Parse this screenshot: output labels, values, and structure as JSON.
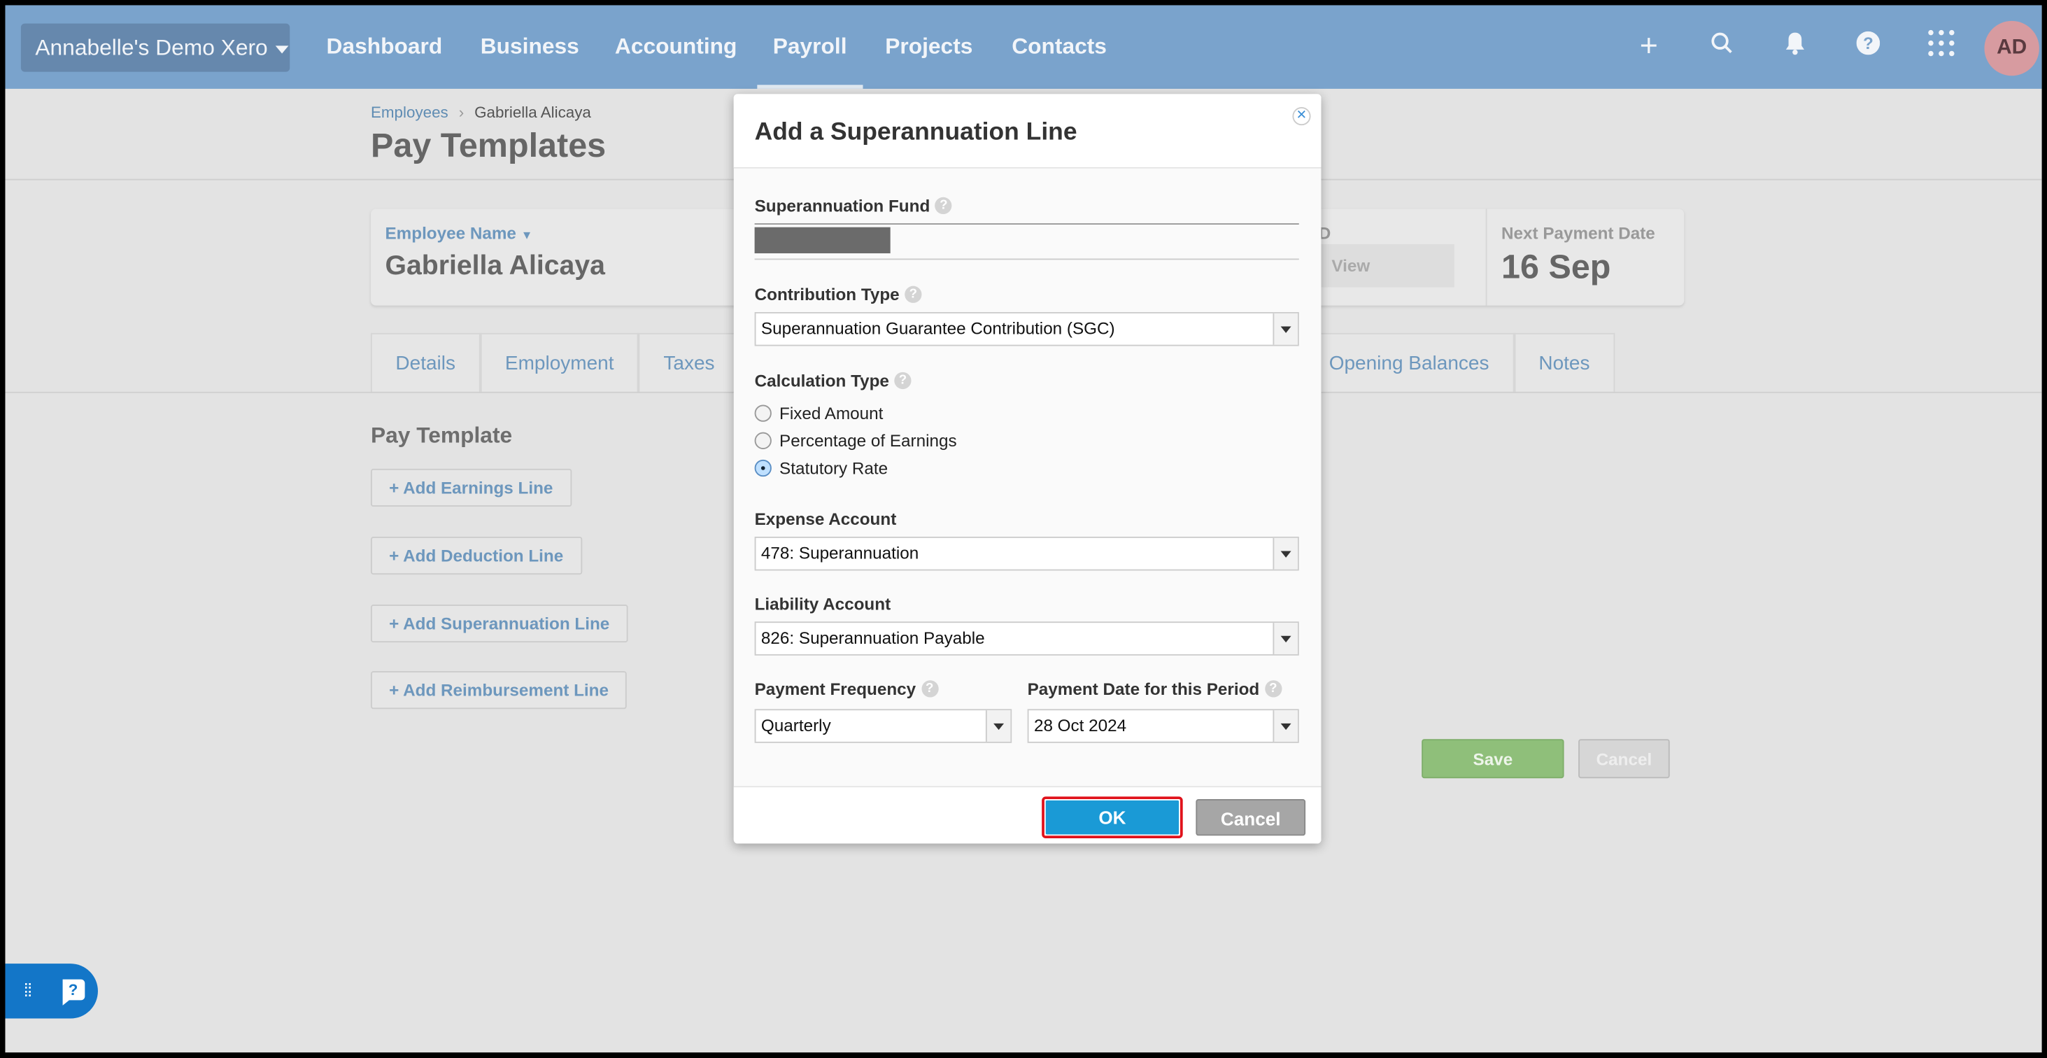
{
  "nav": {
    "org": "Annabelle's Demo Xero",
    "items": [
      "Dashboard",
      "Business",
      "Accounting",
      "Payroll",
      "Projects",
      "Contacts"
    ],
    "active": "Payroll",
    "avatar": "AD",
    "icons": [
      "plus-icon",
      "search-icon",
      "bell-icon",
      "help-icon",
      "apps-grid-icon"
    ]
  },
  "breadcrumb": {
    "parent": "Employees",
    "current": "Gabriella Alicaya"
  },
  "page_title": "Pay Templates",
  "employee_card": {
    "name_label": "Employee Name",
    "name": "Gabriella Alicaya",
    "partial_label": "D",
    "partial_button": "View",
    "next_payment_label": "Next Payment Date",
    "next_payment": "16 Sep"
  },
  "tabs": [
    "Details",
    "Employment",
    "Taxes",
    "Opening Balances",
    "Notes"
  ],
  "pay_template": {
    "title": "Pay Template",
    "buttons": [
      "+ Add Earnings Line",
      "+ Add Deduction Line",
      "+ Add Superannuation Line",
      "+ Add Reimbursement Line"
    ],
    "save": "Save",
    "cancel": "Cancel"
  },
  "modal": {
    "title": "Add a Superannuation Line",
    "fund_label": "Superannuation Fund",
    "contribution_label": "Contribution Type",
    "contribution_value": "Superannuation Guarantee Contribution (SGC)",
    "calc_label": "Calculation Type",
    "calc_options": [
      "Fixed Amount",
      "Percentage of Earnings",
      "Statutory Rate"
    ],
    "calc_selected": "Statutory Rate",
    "expense_label": "Expense Account",
    "expense_value": "478: Superannuation",
    "liability_label": "Liability Account",
    "liability_value": "826: Superannuation Payable",
    "freq_label": "Payment Frequency",
    "freq_value": "Quarterly",
    "date_label": "Payment Date for this Period",
    "date_value": "28 Oct 2024",
    "ok": "OK",
    "cancel": "Cancel"
  }
}
